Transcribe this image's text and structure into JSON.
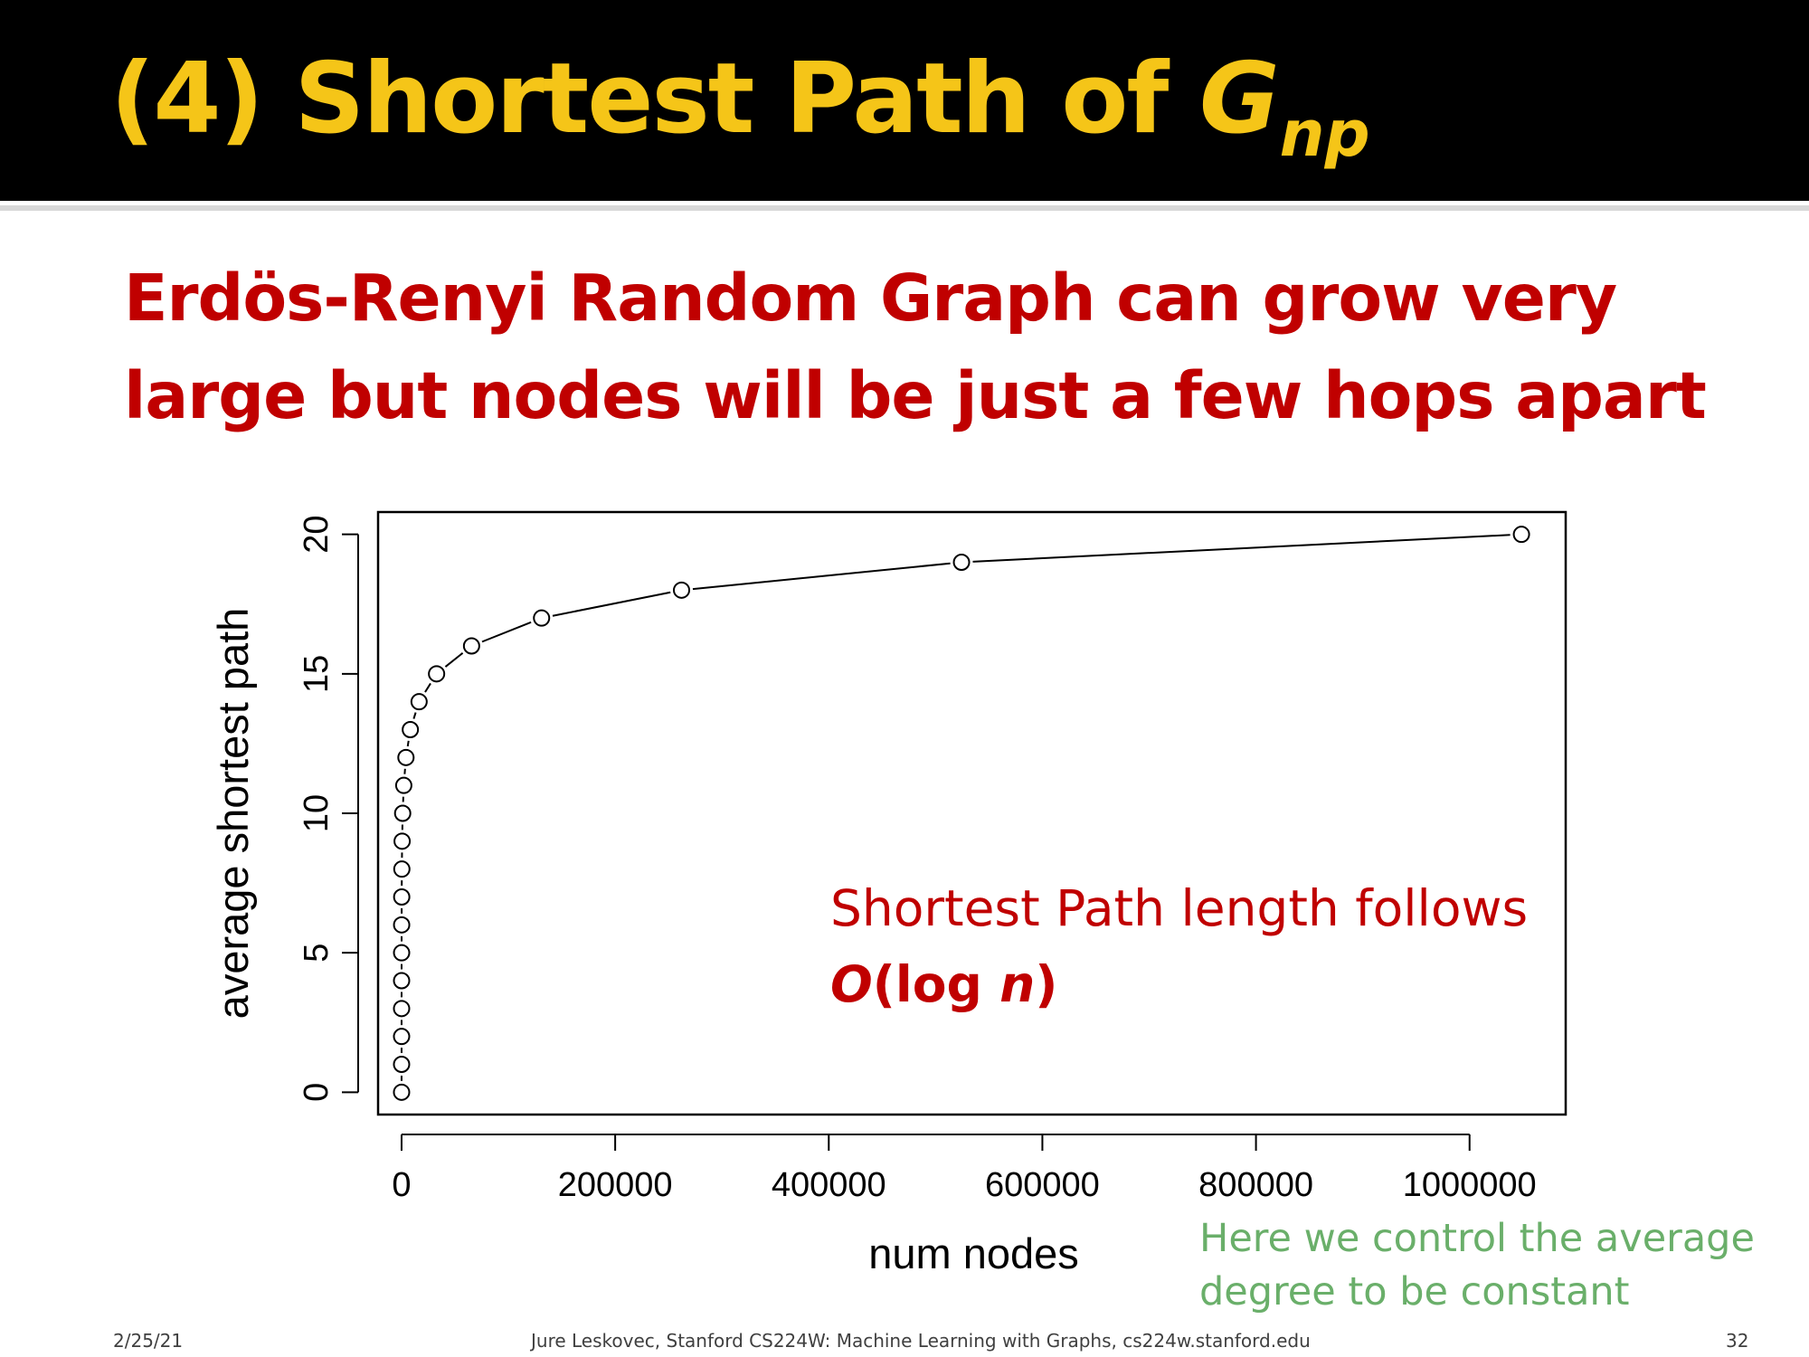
{
  "slide": {
    "title_main": "(4) Shortest Path of ",
    "title_var": "G",
    "title_sub": "np",
    "headline_line1": "Erdös-Renyi Random Graph can grow very",
    "headline_line2": "large but nodes will be just a few hops apart",
    "annotation_line1": "Shortest Path length follows",
    "annotation_O": "O",
    "annotation_open": "(log ",
    "annotation_n": "n",
    "annotation_close": ")",
    "note_line1": "Here we control the average",
    "note_line2": "degree to be constant",
    "footer_date": "2/25/21",
    "footer_credit": "Jure Leskovec, Stanford CS224W: Machine Learning with Graphs, cs224w.stanford.edu",
    "footer_page": "32"
  },
  "colors": {
    "title": "#f5c518",
    "headline": "#c00000",
    "note": "#6aaf6a"
  },
  "chart_data": {
    "type": "line",
    "xlabel": "num nodes",
    "ylabel": "average shortest path",
    "xlim": [
      -22000,
      1090000
    ],
    "ylim": [
      -0.8,
      20.8
    ],
    "xticks": [
      0,
      200000,
      400000,
      600000,
      800000,
      1000000
    ],
    "xtick_labels": [
      "0",
      "200000",
      "400000",
      "600000",
      "800000",
      "1000000"
    ],
    "yticks": [
      0,
      5,
      10,
      15,
      20
    ],
    "ytick_labels": [
      "0",
      "5",
      "10",
      "15",
      "20"
    ],
    "grid": false,
    "legend": "none",
    "series": [
      {
        "marker": "open-circle",
        "x": [
          1,
          2,
          4,
          8,
          16,
          32,
          64,
          128,
          256,
          512,
          1024,
          2048,
          4096,
          8192,
          16384,
          32768,
          65536,
          131072,
          262144,
          524288,
          1048576
        ],
        "y": [
          0,
          1,
          2,
          3,
          4,
          5,
          6,
          7,
          8,
          9,
          10,
          11,
          12,
          13,
          14,
          15,
          16,
          17,
          18,
          19,
          20
        ]
      }
    ]
  }
}
